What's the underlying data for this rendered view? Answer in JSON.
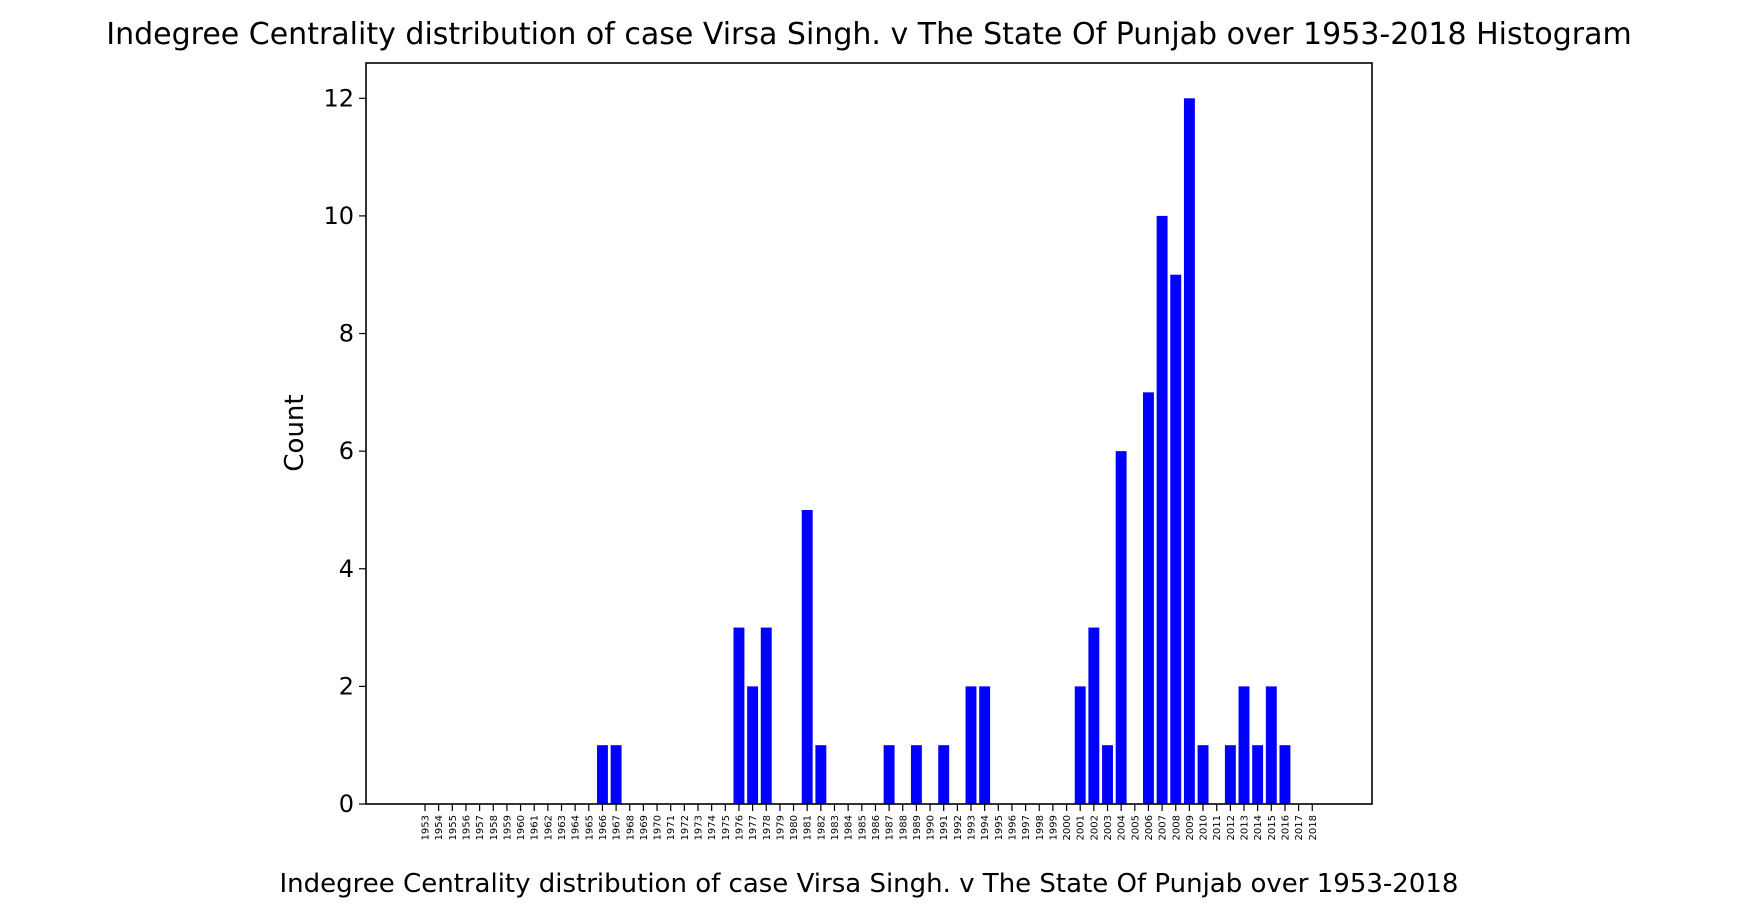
{
  "chart_data": {
    "type": "bar",
    "title": "Indegree Centrality distribution of case Virsa Singh. v The State Of Punjab over 1953-2018 Histogram",
    "xlabel": "Indegree Centrality distribution of case Virsa Singh. v The State Of Punjab over 1953-2018",
    "ylabel": "Count",
    "ylim": [
      0,
      12.6
    ],
    "yticks": [
      "0",
      "2",
      "4",
      "6",
      "8",
      "10",
      "12"
    ],
    "bar_color": "#0000ff",
    "grid": false,
    "categories": [
      "1953",
      "1954",
      "1955",
      "1956",
      "1957",
      "1958",
      "1959",
      "1960",
      "1961",
      "1962",
      "1963",
      "1964",
      "1965",
      "1966",
      "1967",
      "1968",
      "1969",
      "1970",
      "1971",
      "1972",
      "1973",
      "1974",
      "1975",
      "1976",
      "1977",
      "1978",
      "1979",
      "1980",
      "1981",
      "1982",
      "1983",
      "1984",
      "1985",
      "1986",
      "1987",
      "1988",
      "1989",
      "1990",
      "1991",
      "1992",
      "1993",
      "1994",
      "1995",
      "1996",
      "1997",
      "1998",
      "1999",
      "2000",
      "2001",
      "2002",
      "2003",
      "2004",
      "2005",
      "2006",
      "2007",
      "2008",
      "2009",
      "2010",
      "2011",
      "2012",
      "2013",
      "2014",
      "2015",
      "2016",
      "2017",
      "2018"
    ],
    "values": [
      0,
      0,
      0,
      0,
      0,
      0,
      0,
      0,
      0,
      0,
      0,
      0,
      0,
      1,
      1,
      0,
      0,
      0,
      0,
      0,
      0,
      0,
      0,
      3,
      2,
      3,
      0,
      0,
      5,
      1,
      0,
      0,
      0,
      0,
      1,
      0,
      1,
      0,
      1,
      0,
      2,
      2,
      0,
      0,
      0,
      0,
      0,
      0,
      2,
      3,
      1,
      6,
      0,
      7,
      10,
      9,
      12,
      1,
      0,
      1,
      2,
      1,
      2,
      1,
      0,
      0
    ]
  }
}
